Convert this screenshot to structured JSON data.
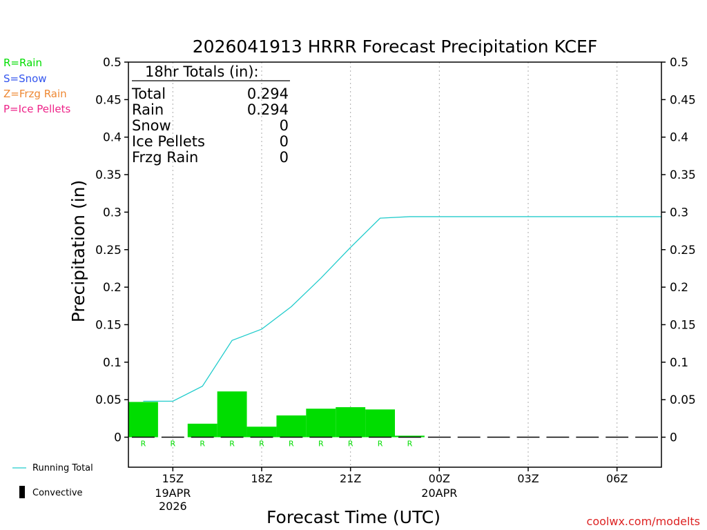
{
  "chart_data": {
    "type": "bar",
    "title": "2026041913 HRRR Forecast Precipitation KCEF",
    "xlabel": "Forecast Time (UTC)",
    "ylabel": "Precipitation (in)",
    "ylim": [
      -0.04,
      0.5
    ],
    "y_ticks": [
      "0",
      "0.05",
      "0.1",
      "0.15",
      "0.2",
      "0.25",
      "0.3",
      "0.35",
      "0.4",
      "0.45",
      "0.5"
    ],
    "x_ticks": [
      {
        "hour": 1.5,
        "label": "15Z",
        "sub1": "19APR",
        "sub2": "2026"
      },
      {
        "hour": 4.5,
        "label": "18Z",
        "sub1": "",
        "sub2": ""
      },
      {
        "hour": 7.5,
        "label": "21Z",
        "sub1": "",
        "sub2": ""
      },
      {
        "hour": 10.5,
        "label": "00Z",
        "sub1": "20APR",
        "sub2": ""
      },
      {
        "hour": 13.5,
        "label": "03Z",
        "sub1": "",
        "sub2": ""
      },
      {
        "hour": 16.5,
        "label": "06Z",
        "sub1": "",
        "sub2": ""
      }
    ],
    "hourly_precip": [
      0.047,
      0,
      0.018,
      0.061,
      0.014,
      0.029,
      0.038,
      0.04,
      0.037,
      0.002,
      0,
      0,
      0,
      0,
      0,
      0,
      0,
      0
    ],
    "precip_type": [
      "R",
      "R",
      "R",
      "R",
      "R",
      "R",
      "R",
      "R",
      "R",
      "R",
      "",
      "",
      "",
      "",
      "",
      "",
      "",
      ""
    ],
    "running_total": {
      "hours": [
        0.5,
        1.5,
        2.5,
        3.5,
        4.5,
        5.5,
        6.5,
        7.5,
        8.5,
        9.5,
        18
      ],
      "values": [
        0.048,
        0.048,
        0.068,
        0.129,
        0.144,
        0.174,
        0.212,
        0.253,
        0.292,
        0.294,
        0.294
      ]
    },
    "series_colors": {
      "rain": "#00dd00",
      "running_total": "#22cccc",
      "convective": "#000000"
    }
  },
  "totals_box": {
    "header": "18hr Totals (in):",
    "rows": [
      {
        "label": "Total",
        "value": "0.294"
      },
      {
        "label": "Rain",
        "value": "0.294"
      },
      {
        "label": "Snow",
        "value": "0"
      },
      {
        "label": "Ice Pellets",
        "value": "0"
      },
      {
        "label": "Frzg Rain",
        "value": "0"
      }
    ]
  },
  "type_legend": [
    {
      "text": "R=Rain",
      "color": "#00dd00"
    },
    {
      "text": "S=Snow",
      "color": "#3355ee"
    },
    {
      "text": "Z=Frzg Rain",
      "color": "#ee8833"
    },
    {
      "text": "P=Ice Pellets",
      "color": "#ee2288"
    }
  ],
  "bottom_legend": {
    "running_total": "Running Total",
    "convective": "Convective"
  },
  "credit": "coolwx.com/modelts"
}
